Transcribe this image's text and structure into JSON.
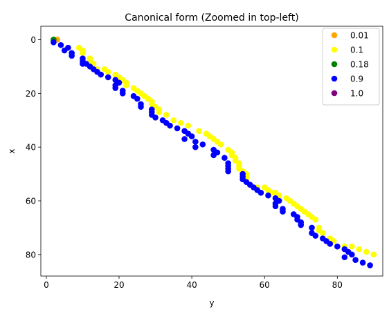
{
  "chart_data": {
    "type": "scatter",
    "title": "Canonical form (Zoomed in top-left)",
    "xlabel": "y",
    "ylabel": "x",
    "xlim": [
      -1.5,
      92.5
    ],
    "ylim": [
      88,
      -5
    ],
    "y_inverted": true,
    "xticks": [
      0,
      20,
      40,
      60,
      80
    ],
    "yticks": [
      0,
      20,
      40,
      60,
      80
    ],
    "grid": false,
    "legend_position": "top-right",
    "series": [
      {
        "name": "0.01",
        "color": "#ffa500",
        "points": [
          [
            3,
            0
          ]
        ]
      },
      {
        "name": "0.1",
        "color": "#ffff00",
        "points": [
          [
            9,
            3
          ],
          [
            10,
            4
          ],
          [
            10,
            5
          ],
          [
            12,
            7
          ],
          [
            12,
            8
          ],
          [
            13,
            9
          ],
          [
            14,
            11
          ],
          [
            16,
            11
          ],
          [
            17,
            12
          ],
          [
            19,
            13
          ],
          [
            20,
            14
          ],
          [
            21,
            15
          ],
          [
            22,
            16
          ],
          [
            22,
            17
          ],
          [
            24,
            18
          ],
          [
            25,
            19
          ],
          [
            26,
            20
          ],
          [
            27,
            21
          ],
          [
            28,
            22
          ],
          [
            29,
            23
          ],
          [
            29,
            24
          ],
          [
            30,
            25
          ],
          [
            31,
            26
          ],
          [
            31,
            27
          ],
          [
            33,
            28
          ],
          [
            35,
            30
          ],
          [
            37,
            31
          ],
          [
            39,
            32
          ],
          [
            42,
            34
          ],
          [
            44,
            35
          ],
          [
            45,
            36
          ],
          [
            46,
            37
          ],
          [
            47,
            38
          ],
          [
            48,
            39
          ],
          [
            50,
            41
          ],
          [
            51,
            42
          ],
          [
            51,
            43
          ],
          [
            52,
            44
          ],
          [
            52,
            45
          ],
          [
            53,
            46
          ],
          [
            53,
            47
          ],
          [
            53,
            48
          ],
          [
            54,
            49
          ],
          [
            55,
            50
          ],
          [
            55,
            51
          ],
          [
            55,
            52
          ],
          [
            58,
            55
          ],
          [
            60,
            55
          ],
          [
            61,
            56
          ],
          [
            62,
            57
          ],
          [
            63,
            57
          ],
          [
            64,
            58
          ],
          [
            66,
            59
          ],
          [
            67,
            60
          ],
          [
            68,
            61
          ],
          [
            69,
            62
          ],
          [
            70,
            63
          ],
          [
            71,
            64
          ],
          [
            72,
            65
          ],
          [
            73,
            66
          ],
          [
            74,
            67
          ],
          [
            75,
            70
          ],
          [
            75,
            71
          ],
          [
            76,
            72
          ],
          [
            78,
            74
          ],
          [
            79,
            75
          ],
          [
            82,
            77
          ],
          [
            84,
            77
          ],
          [
            86,
            78
          ],
          [
            88,
            79
          ],
          [
            90,
            80
          ]
        ]
      },
      {
        "name": "0.18",
        "color": "#008000",
        "points": [
          [
            2,
            0
          ]
        ]
      },
      {
        "name": "0.9",
        "color": "#0000ff",
        "points": [
          [
            2,
            1
          ],
          [
            4,
            2
          ],
          [
            5,
            4
          ],
          [
            6,
            3
          ],
          [
            7,
            5
          ],
          [
            7,
            6
          ],
          [
            10,
            7
          ],
          [
            10,
            8
          ],
          [
            10,
            9
          ],
          [
            11,
            9
          ],
          [
            12,
            10
          ],
          [
            13,
            11
          ],
          [
            14,
            12
          ],
          [
            15,
            13
          ],
          [
            17,
            14
          ],
          [
            19,
            15
          ],
          [
            20,
            16
          ],
          [
            19,
            17
          ],
          [
            19,
            18
          ],
          [
            21,
            19
          ],
          [
            21,
            20
          ],
          [
            24,
            21
          ],
          [
            25,
            22
          ],
          [
            26,
            24
          ],
          [
            26,
            25
          ],
          [
            29,
            26
          ],
          [
            29,
            27
          ],
          [
            29,
            28
          ],
          [
            30,
            29
          ],
          [
            32,
            30
          ],
          [
            33,
            31
          ],
          [
            34,
            32
          ],
          [
            36,
            33
          ],
          [
            38,
            34
          ],
          [
            39,
            35
          ],
          [
            40,
            36
          ],
          [
            38,
            37
          ],
          [
            41,
            38
          ],
          [
            43,
            39
          ],
          [
            41,
            40
          ],
          [
            46,
            41
          ],
          [
            47,
            42
          ],
          [
            46,
            43
          ],
          [
            49,
            44
          ],
          [
            50,
            46
          ],
          [
            50,
            47
          ],
          [
            50,
            48
          ],
          [
            50,
            49
          ],
          [
            54,
            50
          ],
          [
            54,
            51
          ],
          [
            54,
            52
          ],
          [
            55,
            53
          ],
          [
            56,
            54
          ],
          [
            57,
            55
          ],
          [
            58,
            56
          ],
          [
            59,
            57
          ],
          [
            61,
            58
          ],
          [
            63,
            59
          ],
          [
            64,
            60
          ],
          [
            63,
            61
          ],
          [
            63,
            62
          ],
          [
            65,
            63
          ],
          [
            65,
            64
          ],
          [
            68,
            65
          ],
          [
            69,
            66
          ],
          [
            69,
            67
          ],
          [
            70,
            68
          ],
          [
            70,
            69
          ],
          [
            73,
            70
          ],
          [
            73,
            72
          ],
          [
            74,
            73
          ],
          [
            76,
            74
          ],
          [
            77,
            75
          ],
          [
            78,
            76
          ],
          [
            80,
            77
          ],
          [
            82,
            78
          ],
          [
            83,
            79
          ],
          [
            84,
            80
          ],
          [
            82,
            81
          ],
          [
            85,
            82
          ],
          [
            87,
            83
          ],
          [
            89,
            84
          ]
        ]
      },
      {
        "name": "1.0",
        "color": "#800080",
        "points": []
      }
    ]
  }
}
